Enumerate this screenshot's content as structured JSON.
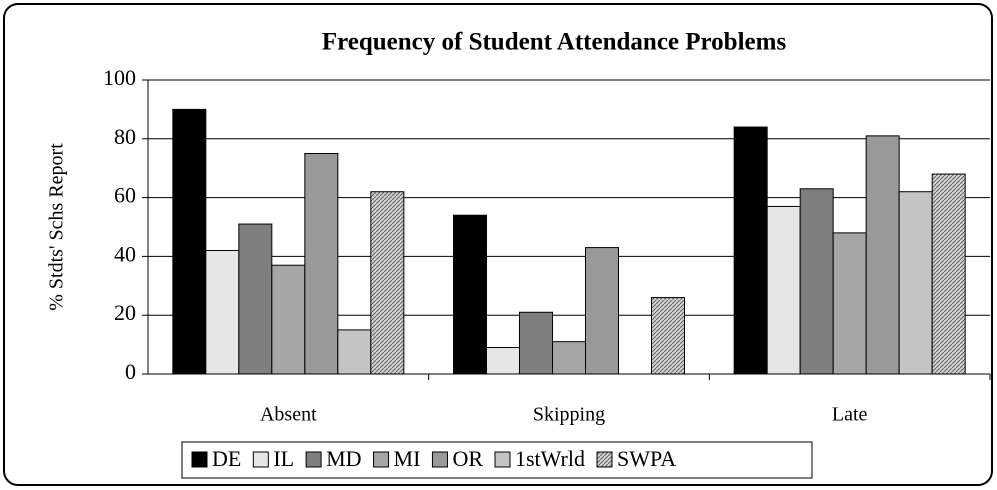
{
  "chart_data": {
    "type": "bar",
    "title": "Frequency of Student Attendance Problems",
    "y_label": "% Stdts' Schs Report",
    "categories": [
      "Absent",
      "Skipping",
      "Late"
    ],
    "series": [
      {
        "name": "DE",
        "color": "#000000",
        "values": [
          90,
          54,
          84
        ]
      },
      {
        "name": "IL",
        "color": "#e6e6e6",
        "values": [
          42,
          9,
          57
        ]
      },
      {
        "name": "MD",
        "color": "#7f7f7f",
        "values": [
          51,
          21,
          63
        ]
      },
      {
        "name": "MI",
        "color": "#a6a6a6",
        "values": [
          37,
          11,
          48
        ]
      },
      {
        "name": "OR",
        "color": "#999999",
        "values": [
          75,
          43,
          81
        ]
      },
      {
        "name": "1stWrld",
        "color": "#c4c4c4",
        "values": [
          15,
          null,
          62
        ]
      },
      {
        "name": "SWPA",
        "color": "#b3b3b3",
        "values": [
          62,
          26,
          68
        ]
      }
    ],
    "ylim": [
      0,
      100
    ],
    "yticks": [
      0,
      20,
      40,
      60,
      80,
      100
    ],
    "grid": true,
    "legend": "bottom"
  }
}
